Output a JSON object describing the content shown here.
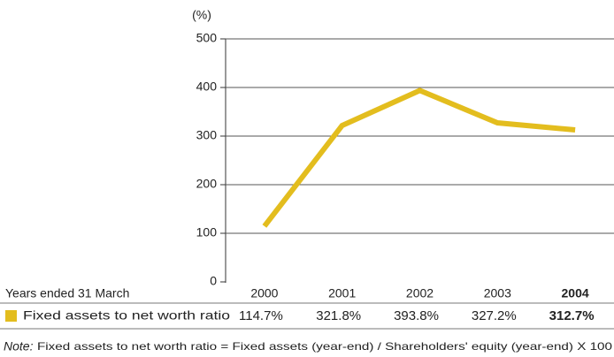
{
  "chart_data": {
    "type": "line",
    "y_unit": "(%)",
    "category_header": "Years ended 31 March",
    "categories": [
      "2000",
      "2001",
      "2002",
      "2003",
      "2004"
    ],
    "series": [
      {
        "name": "Fixed assets to net worth ratio",
        "color": "#e3bd1e",
        "values": [
          114.7,
          321.8,
          393.8,
          327.2,
          312.7
        ],
        "value_labels": [
          "114.7%",
          "321.8%",
          "393.8%",
          "327.2%",
          "312.7%"
        ]
      }
    ],
    "ylim": [
      0,
      500
    ],
    "yticks": [
      0,
      100,
      200,
      300,
      400,
      500
    ],
    "grid": true,
    "note_label": "Note:",
    "note": "Fixed assets to net worth ratio = Fixed assets (year-end) / Shareholders' equity (year-end) X 100"
  }
}
